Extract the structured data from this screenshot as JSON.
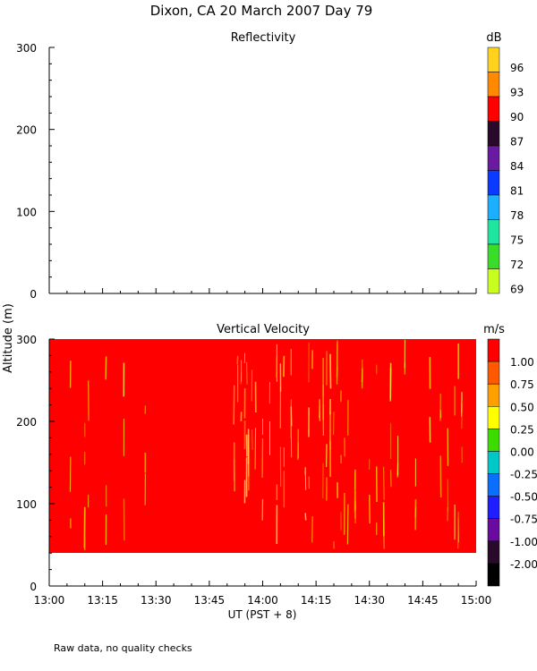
{
  "title": "Dixon, CA 20 March 2007  Day  79",
  "footnote": "Raw data, no quality checks",
  "shared_ylabel": "Altitude (m)",
  "chart_data": [
    {
      "type": "heatmap",
      "title": "Reflectivity",
      "ylim": [
        0,
        300
      ],
      "yticks": [
        "0",
        "100",
        "200",
        "300"
      ],
      "xlim": [
        "13:00",
        "15:00"
      ],
      "colorbar": {
        "unit": "dB",
        "labels": [
          "96",
          "93",
          "90",
          "87",
          "84",
          "81",
          "78",
          "75",
          "72",
          "69"
        ],
        "colors": [
          "#ffd21e",
          "#ff8a00",
          "#ff0000",
          "#2a0a2a",
          "#6a1aa0",
          "#0a3aff",
          "#1ab0ff",
          "#1ee6a0",
          "#3adc2a",
          "#c8ff1e"
        ]
      },
      "data": []
    },
    {
      "type": "heatmap",
      "title": "Vertical Velocity",
      "ylim": [
        0,
        300
      ],
      "yticks": [
        "0",
        "100",
        "200",
        "300"
      ],
      "xlim": [
        "13:00",
        "15:00"
      ],
      "data_range_altitude": [
        40,
        300
      ],
      "dominant_value_ms": 1.0,
      "colorbar": {
        "unit": "m/s",
        "labels": [
          "1.00",
          "0.75",
          "0.50",
          "0.25",
          "0.00",
          "-0.25",
          "-0.50",
          "-0.75",
          "-1.00",
          "-2.00"
        ],
        "colors": [
          "#ff0000",
          "#ff5a00",
          "#ffa000",
          "#ffff00",
          "#3cdc00",
          "#00c8c8",
          "#0a6eff",
          "#1e1eff",
          "#6a0aa0",
          "#2a0a2a",
          "#000000"
        ]
      },
      "streak_times_min": [
        6,
        10,
        11,
        16,
        21,
        27,
        52,
        53,
        54,
        55,
        55.5,
        56,
        57,
        58,
        60,
        62,
        64,
        65,
        66,
        68,
        70,
        72,
        73,
        74,
        76,
        77,
        78,
        79,
        80,
        81,
        82,
        83,
        84,
        86,
        88,
        90,
        92,
        94,
        96,
        98,
        100,
        103,
        107,
        110,
        112,
        114,
        115,
        116
      ]
    }
  ],
  "xaxis": {
    "ticks": [
      "13:00",
      "13:15",
      "13:30",
      "13:45",
      "14:00",
      "14:15",
      "14:30",
      "14:45",
      "15:00"
    ],
    "label": "UT  (PST + 8)"
  }
}
